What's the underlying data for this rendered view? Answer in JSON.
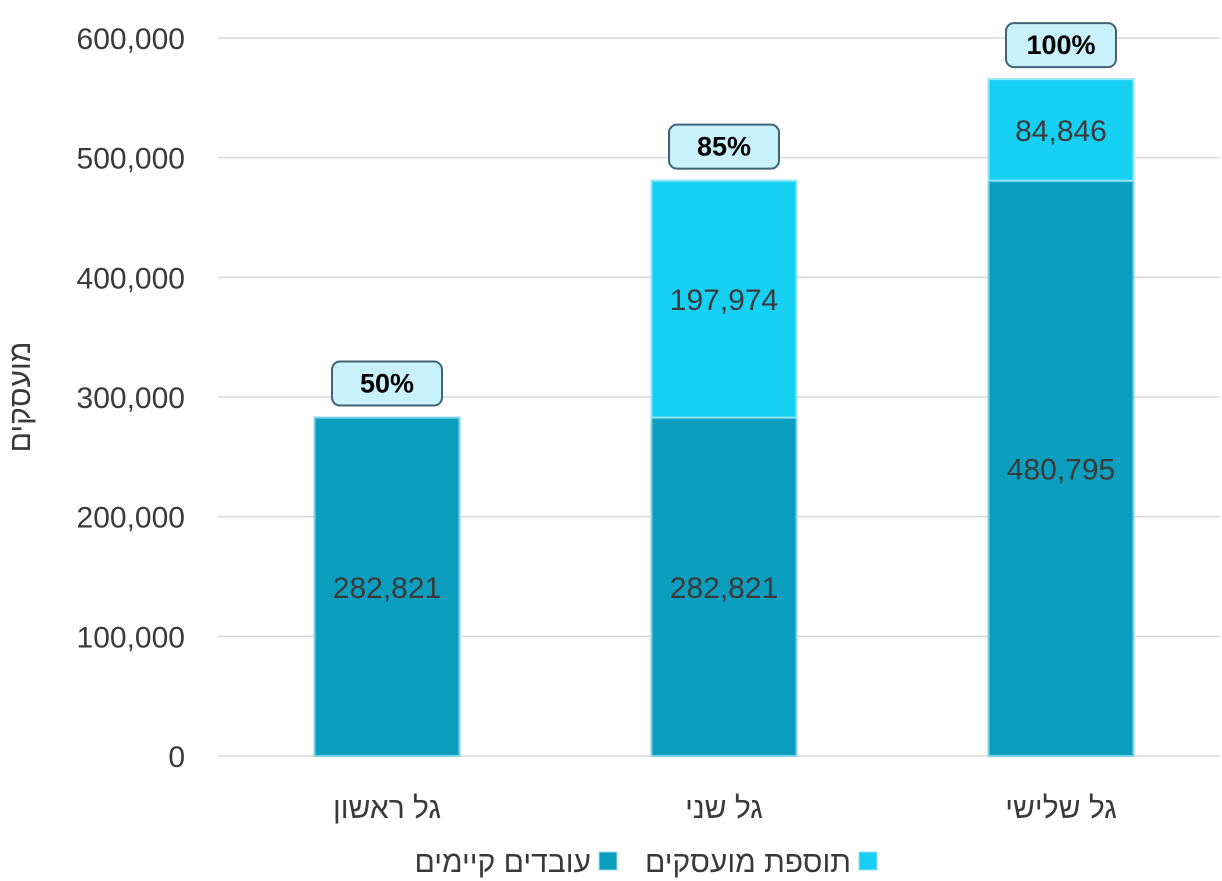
{
  "chart_data": {
    "type": "bar",
    "stacked": true,
    "categories": [
      "גל ראשון",
      "גל שני",
      "גל שלישי"
    ],
    "series": [
      {
        "name": "עובדים קיימים",
        "values": [
          282821,
          282821,
          480795
        ],
        "labels": [
          "282,821",
          "282,821",
          "480,795"
        ],
        "color": "#0b9ebe"
      },
      {
        "name": "תוספת מועסקים",
        "values": [
          0,
          197974,
          84846
        ],
        "labels": [
          "",
          "197,974",
          "84,846"
        ],
        "color": "#16d0f3"
      }
    ],
    "percent_labels": [
      "50%",
      "85%",
      "100%"
    ],
    "ylabel": "מועסקים",
    "ylim": [
      0,
      600000
    ],
    "yticks": [
      0,
      100000,
      200000,
      300000,
      400000,
      500000,
      600000
    ],
    "ytick_labels": [
      "0",
      "100,000",
      "200,000",
      "300,000",
      "400,000",
      "500,000",
      "600,000"
    ],
    "grid": true,
    "legend_position": "bottom",
    "legend_order": [
      1,
      0
    ]
  }
}
